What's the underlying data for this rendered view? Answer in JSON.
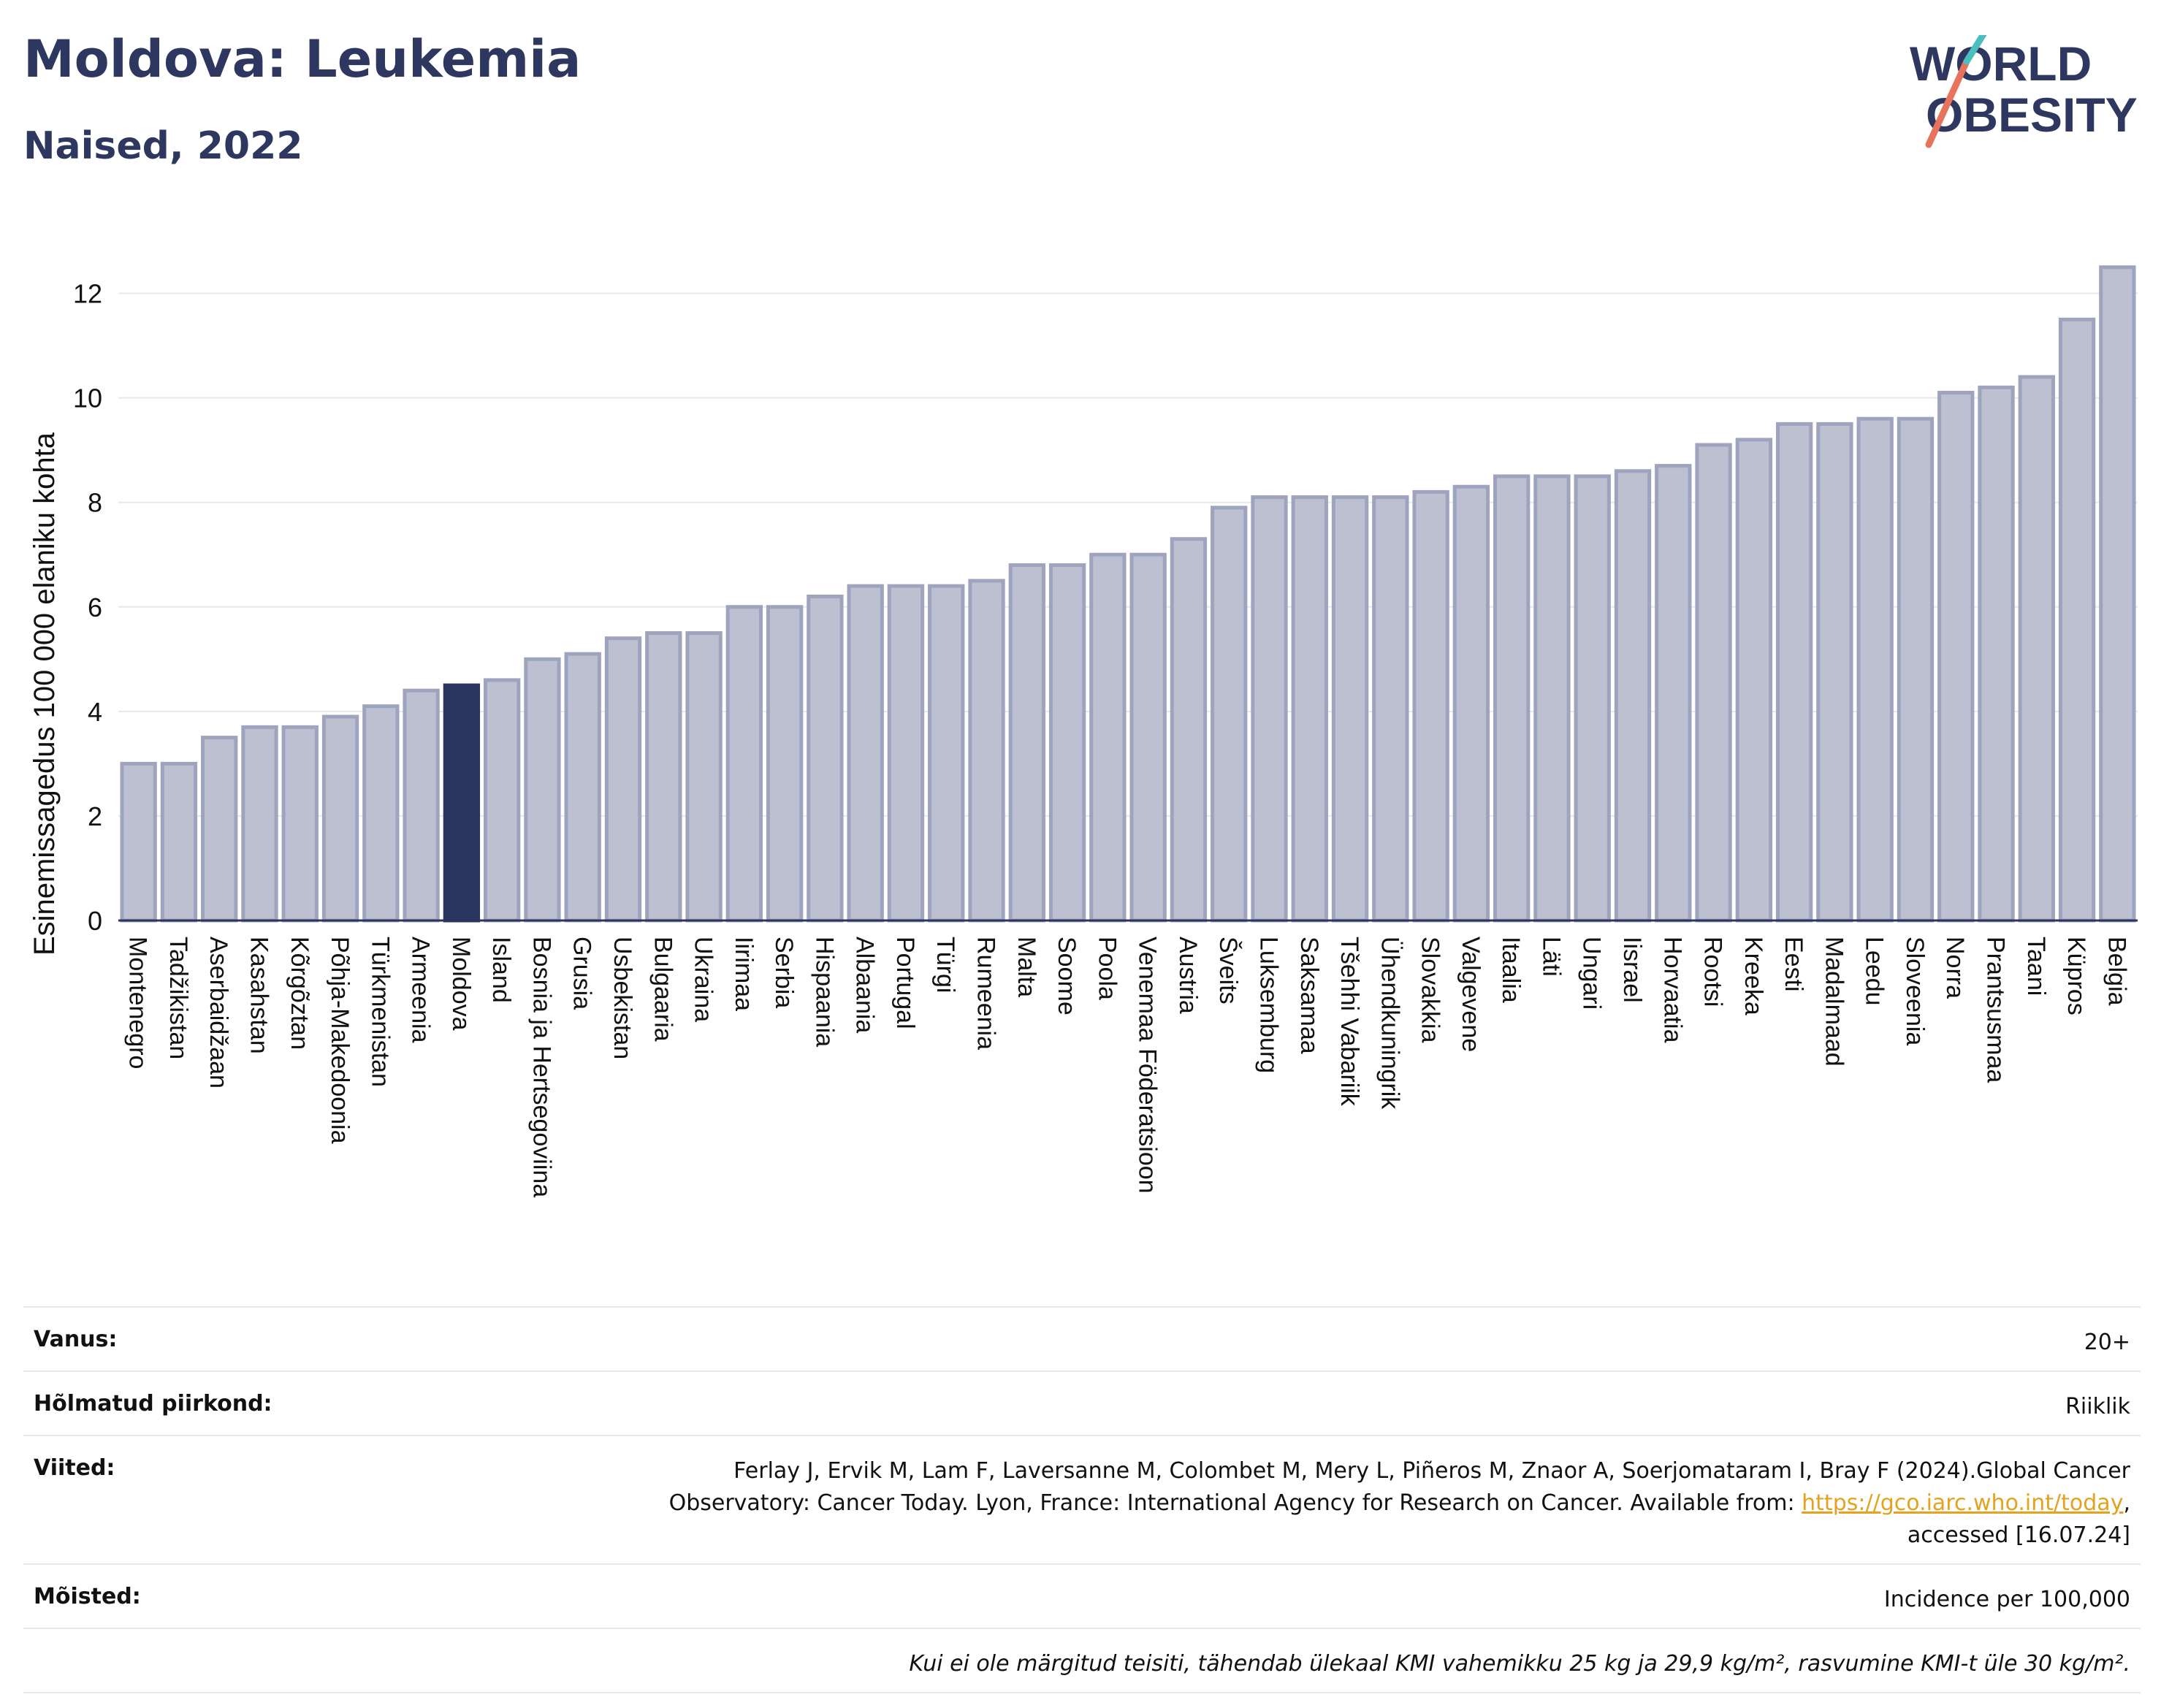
{
  "header": {
    "title": "Moldova: Leukemia",
    "subtitle": "Naised, 2022"
  },
  "logo": {
    "line1": "WORLD",
    "line2": "OBESITY"
  },
  "chart_data": {
    "type": "bar",
    "title": "Moldova: Leukemia",
    "subtitle": "Naised, 2022",
    "xlabel": "",
    "ylabel": "Esinemissagedus 100 000 elaniku kohta",
    "ylim": [
      0,
      13
    ],
    "yticks": [
      0,
      2,
      4,
      6,
      8,
      10,
      12
    ],
    "grid": true,
    "highlight": "Moldova",
    "colors": {
      "bar": "#bcc0d0",
      "bar_edge": "#9ea4bd",
      "highlight": "#2b3660",
      "grid": "#e6e8ee",
      "axis": "#2b3660"
    },
    "categories": [
      "Montenegro",
      "Tadžikistan",
      "Aserbaidžaan",
      "Kasahstan",
      "Kõrgõztan",
      "Põhja-Makedoonia",
      "Türkmenistan",
      "Armeenia",
      "Moldova",
      "Island",
      "Bosnia ja Hertsegoviina",
      "Grusia",
      "Usbekistan",
      "Bulgaaria",
      "Ukraina",
      "Iirimaa",
      "Serbia",
      "Hispaania",
      "Albaania",
      "Portugal",
      "Türgi",
      "Rumeenia",
      "Malta",
      "Soome",
      "Poola",
      "Venemaa Föderatsioon",
      "Austria",
      "Šveits",
      "Luksemburg",
      "Saksamaa",
      "Tšehhi Vabariik",
      "Ühendkuningrik",
      "Slovakkia",
      "Valgevene",
      "Itaalia",
      "Läti",
      "Ungari",
      "Iisrael",
      "Horvaatia",
      "Rootsi",
      "Kreeka",
      "Eesti",
      "Madalmaad",
      "Leedu",
      "Sloveenia",
      "Norra",
      "Prantsusmaa",
      "Taani",
      "Küpros",
      "Belgia"
    ],
    "values": [
      3.0,
      3.0,
      3.5,
      3.7,
      3.7,
      3.9,
      4.1,
      4.4,
      4.5,
      4.6,
      5.0,
      5.1,
      5.4,
      5.5,
      5.5,
      6.0,
      6.0,
      6.2,
      6.4,
      6.4,
      6.4,
      6.5,
      6.8,
      6.8,
      7.0,
      7.0,
      7.3,
      7.9,
      8.1,
      8.1,
      8.1,
      8.1,
      8.2,
      8.3,
      8.5,
      8.5,
      8.5,
      8.6,
      8.7,
      9.1,
      9.2,
      9.5,
      9.5,
      9.6,
      9.6,
      10.1,
      10.2,
      10.4,
      11.5,
      12.5
    ]
  },
  "info": {
    "age_label": "Vanus:",
    "age_value": "20+",
    "region_label": "Hõlmatud piirkond:",
    "region_value": "Riiklik",
    "refs_label": "Viited:",
    "refs_line1": "Ferlay J, Ervik M, Lam F, Laversanne M, Colombet M, Mery L, Piñeros M, Znaor A, Soerjomataram I, Bray F (2024).Global Cancer",
    "refs_line2_pre": "Observatory: Cancer Today. Lyon, France: International Agency for Research on Cancer. Available from: ",
    "refs_link": "https://gco.iarc.who.int/today",
    "refs_line2_post": ",",
    "refs_line3": "accessed [16.07.24]",
    "terms_label": "Mõisted:",
    "terms_value": "Incidence per 100,000",
    "note": "Kui ei ole märgitud teisiti, tähendab ülekaal KMI vahemikku 25 kg ja 29,9 kg/m², rasvumine KMI-t üle 30 kg/m²."
  }
}
